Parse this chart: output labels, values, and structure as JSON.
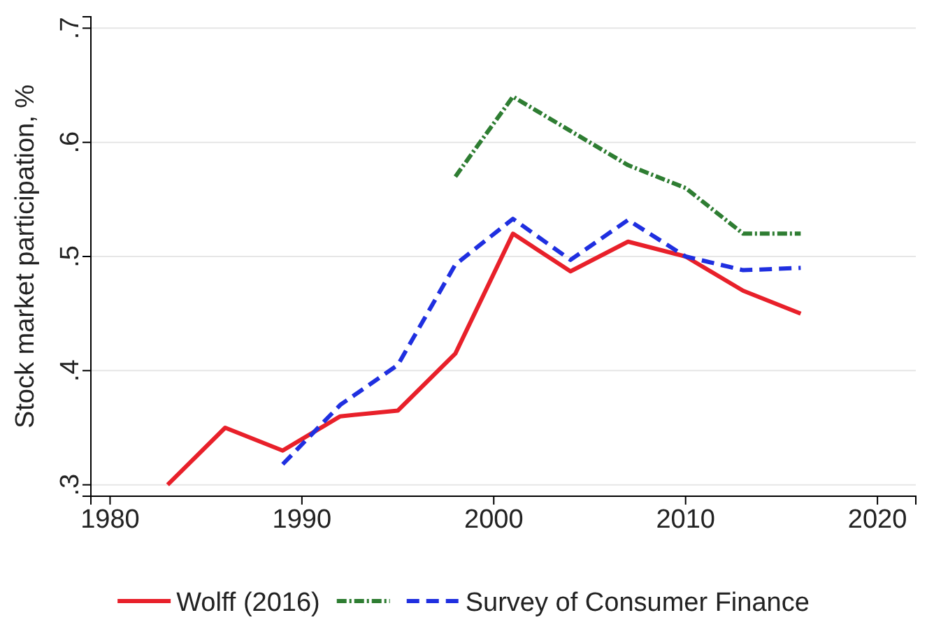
{
  "chart_data": {
    "type": "line",
    "ylabel": "Stock market participation, %",
    "xlim": [
      1979,
      2022
    ],
    "ylim": [
      0.29,
      0.71
    ],
    "xticks": [
      1980,
      1990,
      2000,
      2010,
      2020
    ],
    "yticks": [
      {
        "value": 0.3,
        "label": ".3"
      },
      {
        "value": 0.4,
        "label": ".4"
      },
      {
        "value": 0.5,
        "label": ".5"
      },
      {
        "value": 0.6,
        "label": ".6"
      },
      {
        "value": 0.7,
        "label": ".7"
      }
    ],
    "grid": "y",
    "legend": "bottom",
    "series": [
      {
        "name": "Wolff (2016)",
        "color": "#e8202a",
        "line_style": "solid",
        "x": [
          1983,
          1986,
          1989,
          1992,
          1995,
          1998,
          2001,
          2004,
          2007,
          2010,
          2013,
          2016
        ],
        "values": [
          0.3,
          0.35,
          0.33,
          0.36,
          0.365,
          0.415,
          0.52,
          0.487,
          0.513,
          0.5,
          0.47,
          0.45
        ]
      },
      {
        "color": "#2e7d32",
        "line_style": "dotted",
        "x": [
          1998,
          2001,
          2004,
          2007,
          2010,
          2013,
          2016
        ],
        "values": [
          0.57,
          0.64,
          0.61,
          0.58,
          0.56,
          0.52,
          0.52
        ]
      },
      {
        "name": "Survey of Consumer Finance",
        "color": "#1f2fe0",
        "line_style": "dashed",
        "x": [
          1989,
          1992,
          1995,
          1998,
          2001,
          2004,
          2007,
          2010,
          2013,
          2016
        ],
        "values": [
          0.318,
          0.37,
          0.405,
          0.493,
          0.533,
          0.497,
          0.532,
          0.5,
          0.488,
          0.49
        ]
      }
    ]
  }
}
